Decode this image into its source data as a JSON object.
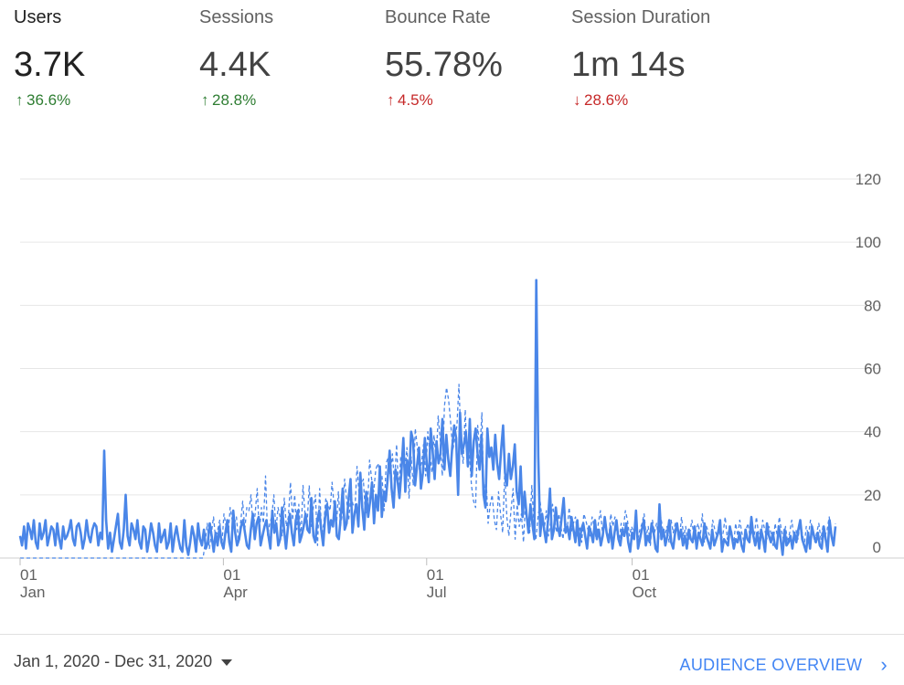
{
  "metrics": [
    {
      "name": "Users",
      "value": "3.7K",
      "change": "36.6%",
      "arrow": "↑",
      "color": "#2e7d32"
    },
    {
      "name": "Sessions",
      "value": "4.4K",
      "change": "28.8%",
      "arrow": "↑",
      "color": "#2e7d32"
    },
    {
      "name": "Bounce Rate",
      "value": "55.78%",
      "change": "4.5%",
      "arrow": "↑",
      "color": "#c62828"
    },
    {
      "name": "Session Duration",
      "value": "1m 14s",
      "change": "28.6%",
      "arrow": "↓",
      "color": "#c62828"
    }
  ],
  "chart_data": {
    "type": "line",
    "title": "",
    "xlabel": "",
    "ylabel": "",
    "ylim": [
      0,
      120
    ],
    "yticks": [
      0,
      20,
      40,
      60,
      80,
      100,
      120
    ],
    "x_axis_labels": [
      {
        "date": "2020-01-01",
        "day": "01",
        "month": "Jan"
      },
      {
        "date": "2020-04-01",
        "day": "01",
        "month": "Apr"
      },
      {
        "date": "2020-07-01",
        "day": "01",
        "month": "Jul"
      },
      {
        "date": "2020-10-01",
        "day": "01",
        "month": "Oct"
      }
    ],
    "grid": true,
    "x_start": "2020-01-01",
    "x_end": "2020-12-31",
    "series": [
      {
        "style": "solid",
        "color": "#4a86e8",
        "values": [
          7,
          4,
          10,
          3,
          11,
          9,
          6,
          12,
          5,
          3,
          11,
          6,
          8,
          12,
          4,
          7,
          10,
          9,
          4,
          11,
          6,
          3,
          10,
          6,
          7,
          9,
          12,
          6,
          4,
          10,
          11,
          8,
          3,
          6,
          12,
          7,
          5,
          9,
          11,
          10,
          4,
          8,
          6,
          34,
          12,
          3,
          8,
          2,
          6,
          10,
          14,
          5,
          3,
          9,
          20,
          7,
          4,
          11,
          9,
          6,
          12,
          5,
          3,
          10,
          9,
          2,
          6,
          11,
          8,
          4,
          2,
          11,
          5,
          7,
          9,
          3,
          5,
          11,
          2,
          7,
          10,
          6,
          3,
          2,
          12,
          4,
          1,
          5,
          10,
          7,
          2,
          11,
          6,
          4,
          9,
          3,
          5,
          11,
          7,
          2,
          8,
          4,
          10,
          5,
          3,
          8,
          12,
          5,
          2,
          15,
          8,
          4,
          6,
          10,
          12,
          8,
          4,
          3,
          9,
          14,
          6,
          11,
          13,
          4,
          7,
          10,
          12,
          7,
          3,
          15,
          8,
          11,
          4,
          6,
          16,
          9,
          3,
          10,
          14,
          8,
          4,
          12,
          15,
          5,
          7,
          10,
          14,
          9,
          8,
          19,
          7,
          5,
          12,
          15,
          9,
          4,
          13,
          17,
          8,
          12,
          10,
          18,
          7,
          6,
          13,
          22,
          9,
          11,
          19,
          25,
          8,
          14,
          17,
          10,
          27,
          16,
          9,
          21,
          13,
          18,
          24,
          11,
          20,
          15,
          29,
          13,
          21,
          18,
          25,
          34,
          22,
          16,
          28,
          25,
          19,
          27,
          38,
          21,
          31,
          26,
          40,
          37,
          23,
          29,
          35,
          22,
          27,
          38,
          30,
          24,
          41,
          34,
          25,
          37,
          30,
          33,
          44,
          28,
          39,
          31,
          26,
          35,
          42,
          38,
          20,
          46,
          33,
          36,
          40,
          29,
          44,
          26,
          37,
          41,
          33,
          28,
          39,
          20,
          16,
          41,
          32,
          35,
          28,
          39,
          30,
          25,
          34,
          42,
          27,
          23,
          33,
          25,
          29,
          36,
          21,
          17,
          29,
          13,
          21,
          14,
          8,
          17,
          11,
          6,
          88,
          32,
          7,
          14,
          9,
          5,
          12,
          22,
          6,
          9,
          16,
          10,
          7,
          13,
          19,
          8,
          10,
          6,
          13,
          9,
          5,
          12,
          4,
          9,
          11,
          7,
          3,
          10,
          8,
          5,
          12,
          6,
          9,
          4,
          7,
          13,
          8,
          5,
          10,
          3,
          8,
          12,
          6,
          4,
          9,
          7,
          11,
          5,
          2,
          8,
          6,
          15,
          3,
          6,
          9,
          12,
          4,
          7,
          5,
          11,
          8,
          3,
          2,
          17,
          6,
          9,
          4,
          7,
          12,
          5,
          3,
          8,
          11,
          6,
          9,
          4,
          7,
          3,
          9,
          6,
          5,
          10,
          3,
          8,
          6,
          4,
          11,
          7,
          5,
          3,
          9,
          4,
          6,
          8,
          12,
          2,
          6,
          5,
          4,
          10,
          7,
          3,
          6,
          5,
          8,
          4,
          2,
          9,
          6,
          5,
          13,
          7,
          4,
          8,
          3,
          9,
          6,
          2,
          11,
          7,
          5,
          8,
          4,
          3,
          10,
          6,
          1,
          9,
          4,
          5,
          7,
          3,
          8,
          5,
          9,
          12,
          6,
          4,
          2,
          8,
          3,
          10,
          7,
          5,
          8,
          4,
          3,
          10,
          6,
          2,
          12,
          7,
          4,
          10
        ]
      },
      {
        "style": "dashed",
        "color": "#4a86e8",
        "values": [
          0,
          0,
          0,
          0,
          0,
          0,
          0,
          0,
          0,
          0,
          0,
          0,
          0,
          0,
          0,
          0,
          0,
          0,
          0,
          0,
          0,
          0,
          0,
          0,
          0,
          0,
          0,
          0,
          0,
          0,
          0,
          0,
          0,
          0,
          0,
          0,
          0,
          0,
          0,
          0,
          0,
          0,
          0,
          0,
          0,
          0,
          0,
          0,
          0,
          0,
          0,
          0,
          0,
          0,
          0,
          0,
          0,
          0,
          0,
          0,
          0,
          0,
          0,
          0,
          0,
          0,
          0,
          0,
          0,
          0,
          0,
          0,
          0,
          0,
          0,
          0,
          0,
          0,
          0,
          0,
          0,
          0,
          0,
          0,
          0,
          0,
          0,
          0,
          0,
          5,
          11,
          3,
          8,
          13,
          6,
          9,
          12,
          4,
          14,
          10,
          7,
          16,
          12,
          11,
          13,
          5,
          11,
          18,
          9,
          16,
          15,
          20,
          9,
          14,
          22,
          8,
          16,
          11,
          26,
          7,
          11,
          13,
          20,
          9,
          16,
          13,
          7,
          19,
          10,
          13,
          24,
          12,
          20,
          9,
          17,
          6,
          23,
          14,
          11,
          23,
          10,
          16,
          20,
          4,
          22,
          7,
          11,
          19,
          17,
          15,
          24,
          16,
          9,
          21,
          10,
          14,
          25,
          18,
          12,
          20,
          17,
          16,
          29,
          20,
          23,
          25,
          14,
          15,
          31,
          25,
          21,
          28,
          30,
          27,
          26,
          15,
          30,
          32,
          26,
          33,
          24,
          36,
          21,
          32,
          31,
          27,
          35,
          19,
          32,
          23,
          41,
          35,
          28,
          30,
          36,
          26,
          40,
          33,
          27,
          39,
          31,
          45,
          37,
          26,
          48,
          54,
          50,
          43,
          34,
          38,
          42,
          55,
          36,
          30,
          47,
          29,
          33,
          23,
          18,
          16,
          42,
          33,
          46,
          18,
          26,
          11,
          17,
          20,
          12,
          9,
          21,
          14,
          8,
          27,
          13,
          7,
          15,
          22,
          6,
          17,
          10,
          14,
          5,
          18,
          12,
          8,
          23,
          11,
          6,
          13,
          18,
          12,
          9,
          15,
          7,
          11,
          17,
          12,
          8,
          14,
          10,
          6,
          12,
          9,
          16,
          8,
          11,
          13,
          7,
          10,
          5,
          14,
          12,
          9,
          7,
          13,
          10,
          6,
          11,
          15,
          8,
          12,
          9,
          6,
          14,
          10,
          13,
          8,
          5,
          11,
          9,
          15,
          12,
          7,
          10,
          8,
          13,
          6,
          9,
          11,
          14,
          7,
          10,
          4,
          12,
          8,
          11,
          6,
          13,
          9,
          7,
          10,
          5,
          12,
          8,
          11,
          9,
          6,
          13,
          7,
          10,
          4,
          8,
          12,
          6,
          9,
          11,
          7,
          14,
          5,
          10,
          8,
          6,
          12,
          9,
          7,
          11,
          5,
          8,
          13,
          6,
          10,
          9,
          4,
          11,
          7,
          12,
          8,
          5,
          9,
          11,
          6,
          10,
          7,
          13,
          8,
          5,
          12,
          9,
          6,
          10,
          8,
          4,
          11,
          7,
          13,
          9,
          6,
          10,
          5,
          8,
          12,
          7,
          9,
          6,
          11,
          8,
          4,
          10,
          7,
          12,
          9,
          5,
          8,
          11,
          6,
          10,
          7,
          9,
          13,
          8,
          5,
          11
        ]
      }
    ]
  },
  "footer": {
    "date_range": "Jan 1, 2020 - Dec 31, 2020",
    "link": "AUDIENCE OVERVIEW",
    "chevron": "›"
  }
}
